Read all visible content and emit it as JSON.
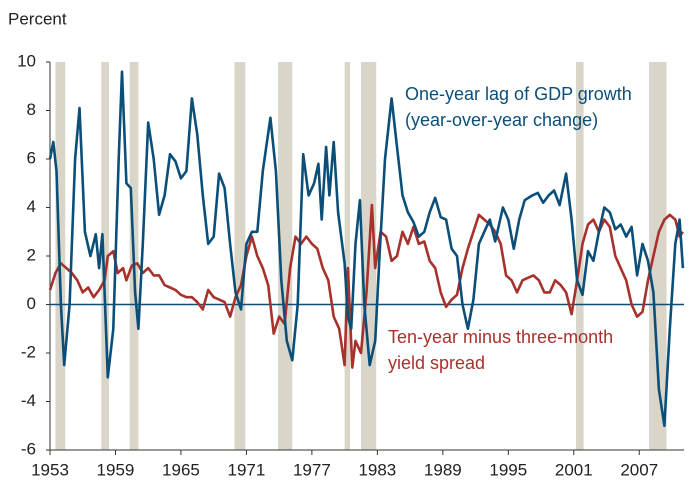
{
  "chart_data": {
    "type": "line",
    "y_label": "Percent",
    "xlim": [
      1953,
      2011.1
    ],
    "xticks": [
      1953,
      1959,
      1965,
      1971,
      1977,
      1983,
      1989,
      1995,
      2001,
      2007
    ],
    "ylim": [
      -6,
      10
    ],
    "yticks": [
      -6,
      -4,
      -2,
      0,
      2,
      4,
      6,
      8,
      10
    ],
    "recession_color": "#d9d5c9",
    "recessions": [
      [
        1953.5,
        1954.4
      ],
      [
        1957.7,
        1958.4
      ],
      [
        1960.3,
        1961.1
      ],
      [
        1969.9,
        1970.9
      ],
      [
        1973.9,
        1975.2
      ],
      [
        1980.0,
        1980.5
      ],
      [
        1981.5,
        1982.9
      ],
      [
        2001.2,
        2001.9
      ],
      [
        2007.9,
        2009.5
      ]
    ],
    "annotations": [
      {
        "lines": [
          "One-year lag of GDP growth",
          "(year-over-year change)"
        ],
        "color": "#0b4f79"
      },
      {
        "lines": [
          "Ten-year minus three-month",
          "yield spread"
        ],
        "color": "#a8312c"
      }
    ],
    "series": [
      {
        "name": "One-year lag of GDP growth",
        "color": "#0b4f79",
        "x": [
          1953,
          1953.3,
          1953.6,
          1954,
          1954.3,
          1954.8,
          1955.3,
          1955.7,
          1956.2,
          1956.7,
          1957.2,
          1957.5,
          1957.8,
          1958.3,
          1958.8,
          1959.3,
          1959.6,
          1960,
          1960.4,
          1960.8,
          1961.1,
          1961.5,
          1962,
          1962.5,
          1963,
          1963.5,
          1964,
          1964.5,
          1965,
          1965.5,
          1966,
          1966.5,
          1967,
          1967.5,
          1968,
          1968.5,
          1969,
          1969.5,
          1970,
          1970.5,
          1971,
          1971.5,
          1972,
          1972.5,
          1973.2,
          1973.7,
          1974.2,
          1974.7,
          1975.2,
          1975.7,
          1976.2,
          1976.7,
          1977.2,
          1977.6,
          1977.9,
          1978.3,
          1978.6,
          1979,
          1979.4,
          1980,
          1980.3,
          1980.6,
          1981,
          1981.4,
          1981.8,
          1982.3,
          1982.8,
          1983.2,
          1983.7,
          1984.3,
          1984.8,
          1985.3,
          1985.8,
          1986.3,
          1986.8,
          1987.3,
          1987.8,
          1988.3,
          1988.8,
          1989.3,
          1989.8,
          1990.3,
          1990.8,
          1991.3,
          1991.8,
          1992.3,
          1992.8,
          1993.3,
          1993.8,
          1994.5,
          1995,
          1995.5,
          1996,
          1996.5,
          1997.2,
          1997.7,
          1998.2,
          1998.7,
          1999.2,
          1999.7,
          2000.3,
          2000.8,
          2001.3,
          2001.8,
          2002.3,
          2002.8,
          2003.3,
          2003.8,
          2004.3,
          2004.8,
          2005.3,
          2005.8,
          2006.3,
          2006.8,
          2007.3,
          2007.8,
          2008.3,
          2008.8,
          2009.3,
          2009.8,
          2010.3,
          2010.7,
          2011.0
        ],
        "values": [
          6.0,
          6.7,
          5.5,
          0,
          -2.5,
          0,
          6,
          8.1,
          3,
          2,
          2.9,
          1.5,
          2.9,
          -3.0,
          -1,
          6,
          9.6,
          5,
          4.8,
          0.5,
          -1,
          2.5,
          7.5,
          6,
          3.7,
          4.5,
          6.2,
          5.9,
          5.2,
          5.5,
          8.5,
          7,
          4.5,
          2.5,
          2.8,
          5.4,
          4.8,
          2.5,
          0.5,
          -0.2,
          2.5,
          3,
          3,
          5.5,
          7.7,
          5.5,
          1,
          -1.5,
          -2.3,
          0,
          6.2,
          4.5,
          5,
          5.8,
          3.5,
          6.5,
          4.5,
          6.7,
          3.8,
          1.7,
          -0.5,
          -1,
          2.5,
          4.3,
          0,
          -2.5,
          -1.5,
          2,
          6,
          8.5,
          6.5,
          4.5,
          3.8,
          3.4,
          2.8,
          3,
          3.8,
          4.4,
          3.6,
          3.5,
          2.3,
          2,
          0,
          -1,
          0.2,
          2.5,
          3,
          3.5,
          2.6,
          4,
          3.5,
          2.3,
          3.5,
          4.3,
          4.5,
          4.6,
          4.2,
          4.5,
          4.7,
          4.1,
          5.4,
          3.5,
          1,
          0.4,
          2.2,
          1.8,
          3,
          4,
          3.8,
          3.1,
          3.3,
          2.8,
          3.2,
          1.2,
          2.5,
          1.8,
          0.5,
          -3.5,
          -5,
          -1,
          2.5,
          3.5,
          1.5
        ]
      },
      {
        "name": "Ten-year minus three-month yield spread",
        "color": "#a8312c",
        "x": [
          1953,
          1953.5,
          1954,
          1954.5,
          1955,
          1955.5,
          1956,
          1956.5,
          1957,
          1957.5,
          1958,
          1958.3,
          1958.8,
          1959.2,
          1959.7,
          1960,
          1960.5,
          1961,
          1961.5,
          1962,
          1962.5,
          1963,
          1963.5,
          1964,
          1964.5,
          1965,
          1965.5,
          1966,
          1966.5,
          1967,
          1967.5,
          1968,
          1968.5,
          1969,
          1969.5,
          1970,
          1970.5,
          1971,
          1971.5,
          1972,
          1972.5,
          1973,
          1973.5,
          1974,
          1974.5,
          1975,
          1975.5,
          1976,
          1976.5,
          1977,
          1977.5,
          1978,
          1978.5,
          1979,
          1979.5,
          1980,
          1980.3,
          1980.7,
          1981,
          1981.5,
          1982,
          1982.5,
          1982.8,
          1983.3,
          1983.8,
          1984.3,
          1984.8,
          1985.3,
          1985.8,
          1986.3,
          1986.8,
          1987.3,
          1987.8,
          1988.3,
          1988.8,
          1989.3,
          1989.8,
          1990.3,
          1990.8,
          1991.3,
          1991.8,
          1992.3,
          1992.8,
          1993.3,
          1993.8,
          1994.3,
          1994.8,
          1995.3,
          1995.8,
          1996.3,
          1996.8,
          1997.3,
          1997.8,
          1998.3,
          1998.8,
          1999.3,
          1999.8,
          2000.3,
          2000.8,
          2001.3,
          2001.8,
          2002.3,
          2002.8,
          2003.3,
          2003.8,
          2004.3,
          2004.8,
          2005.3,
          2005.8,
          2006.3,
          2006.8,
          2007.3,
          2007.8,
          2008.3,
          2008.8,
          2009.3,
          2009.8,
          2010.3,
          2010.7,
          2011.0
        ],
        "values": [
          0.6,
          1.3,
          1.7,
          1.5,
          1.3,
          1.0,
          0.5,
          0.7,
          0.3,
          0.6,
          1.0,
          2.0,
          2.2,
          1.3,
          1.5,
          1,
          1.6,
          1.7,
          1.3,
          1.5,
          1.2,
          1.2,
          0.8,
          0.7,
          0.6,
          0.4,
          0.3,
          0.3,
          0.1,
          -0.2,
          0.6,
          0.3,
          0.2,
          0.1,
          -0.5,
          0.3,
          0.8,
          2.0,
          2.8,
          2.0,
          1.5,
          0.8,
          -1.2,
          -0.5,
          -0.8,
          1.5,
          2.8,
          2.5,
          2.8,
          2.5,
          2.3,
          1.5,
          1,
          -0.5,
          -1,
          -2.5,
          1.5,
          -2.6,
          -1.5,
          -2,
          0.5,
          4.1,
          1.5,
          3,
          2.8,
          1.8,
          2.0,
          3,
          2.5,
          3.2,
          2.5,
          2.6,
          1.8,
          1.5,
          0.5,
          -0.1,
          0.2,
          0.4,
          1.5,
          2.3,
          3.0,
          3.7,
          3.5,
          3.3,
          3.0,
          2.5,
          1.2,
          1.0,
          0.5,
          1.0,
          1.1,
          1.2,
          1.0,
          0.5,
          0.5,
          1.0,
          0.8,
          0.5,
          -0.4,
          1.0,
          2.5,
          3.3,
          3.5,
          3.0,
          3.5,
          3.2,
          2.0,
          1.5,
          1.0,
          0,
          -0.5,
          -0.3,
          1.0,
          2.0,
          3.0,
          3.5,
          3.7,
          3.5,
          2.8,
          3.0
        ]
      }
    ]
  }
}
